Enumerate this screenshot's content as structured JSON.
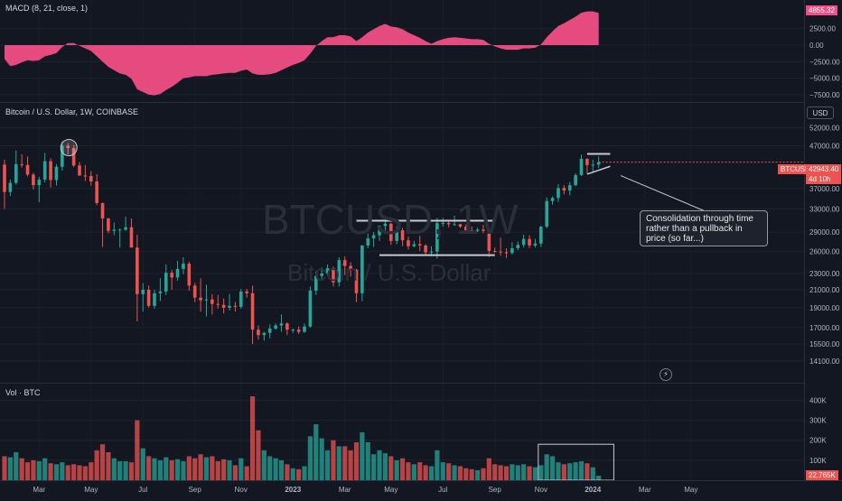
{
  "macd": {
    "title": "MACD (8, 21, close, 1)",
    "color": "#f04e85",
    "y_ticks": [
      4855.32,
      2500,
      0,
      -2500,
      -5000,
      -7500
    ],
    "y_tick_labels": [
      "4855.32",
      "2500.00",
      "0.00",
      "−2500.00",
      "−5000.00",
      "−7500.00"
    ],
    "current_label": "4855.32"
  },
  "price": {
    "title": "Bitcoin / U.S. Dollar, 1W, COINBASE",
    "currency_button": "USD",
    "y_ticks": [
      52000,
      47000,
      42943.4,
      37000,
      33000,
      29000,
      26000,
      23000,
      21000,
      19000,
      17000,
      15500,
      14100
    ],
    "y_tick_labels": [
      "52000.00",
      "47000.00",
      "42943.40",
      "37000.00",
      "33000.00",
      "29000.00",
      "26000.00",
      "23000.00",
      "21000.00",
      "19000.00",
      "17000.00",
      "15500.00",
      "14100.00"
    ],
    "symbol_badge": "BTCUSD",
    "last_price": "42943.40",
    "countdown": "4d 10h",
    "watermark_symbol": "BTCUSD, 1W",
    "watermark_name": "Bitcoin / U.S. Dollar",
    "annotation": "Consolidation through time rather than a pullback in price (so far...)",
    "up_color": "#26a69a",
    "down_color": "#ef5350"
  },
  "volume": {
    "title": "Vol · BTC",
    "y_ticks": [
      400000,
      300000,
      200000,
      100000
    ],
    "y_tick_labels": [
      "400K",
      "300K",
      "200K",
      "100K"
    ],
    "current_label": "22.765K"
  },
  "x_axis": {
    "labels": [
      "Mar",
      "May",
      "Jul",
      "Sep",
      "Nov",
      "2023",
      "Mar",
      "May",
      "Jul",
      "Sep",
      "Nov",
      "2024",
      "Mar",
      "May"
    ]
  },
  "chart_data": {
    "type": "candlestick",
    "title": "Bitcoin / U.S. Dollar, 1W, COINBASE",
    "interval": "1W",
    "start_week": "2022-01-17",
    "grid": true,
    "ylim_price": [
      13000,
      54000
    ],
    "ylim_volume": [
      0,
      470000
    ],
    "ylim_macd": [
      -8200,
      6000
    ],
    "ohlc": [
      [
        42300,
        43500,
        33000,
        36300
      ],
      [
        36300,
        38900,
        35500,
        38200
      ],
      [
        38200,
        45800,
        37800,
        42400
      ],
      [
        42400,
        44800,
        41600,
        42200
      ],
      [
        42200,
        44300,
        39600,
        40000
      ],
      [
        40000,
        40400,
        36800,
        37700
      ],
      [
        37700,
        39500,
        34300,
        38900
      ],
      [
        38900,
        45200,
        38300,
        43100
      ],
      [
        43100,
        43800,
        37200,
        38800
      ],
      [
        38800,
        42400,
        37600,
        41800
      ],
      [
        41800,
        48200,
        40900,
        47000
      ],
      [
        47000,
        47700,
        44800,
        46400
      ],
      [
        46400,
        47200,
        41700,
        42100
      ],
      [
        42100,
        42900,
        39700,
        39800
      ],
      [
        39800,
        42200,
        38600,
        39700
      ],
      [
        39700,
        40800,
        37600,
        38500
      ],
      [
        38500,
        40100,
        33700,
        34100
      ],
      [
        34100,
        34200,
        26700,
        31300
      ],
      [
        31300,
        31400,
        28800,
        29200
      ],
      [
        29200,
        30600,
        28500,
        29400
      ],
      [
        29400,
        29600,
        26600,
        29400
      ],
      [
        29400,
        31600,
        29200,
        29800
      ],
      [
        29800,
        31300,
        26700,
        26600
      ],
      [
        26600,
        28600,
        17600,
        20500
      ],
      [
        20500,
        21800,
        18600,
        21000
      ],
      [
        21000,
        21500,
        19000,
        19200
      ],
      [
        19200,
        21000,
        18900,
        20600
      ],
      [
        20600,
        22400,
        19700,
        20800
      ],
      [
        20800,
        24200,
        20400,
        23100
      ],
      [
        23100,
        23500,
        21000,
        22500
      ],
      [
        22500,
        24700,
        22100,
        23600
      ],
      [
        23600,
        25200,
        22900,
        24300
      ],
      [
        24300,
        24600,
        20900,
        21500
      ],
      [
        21500,
        21800,
        19600,
        20100
      ],
      [
        20100,
        22400,
        18600,
        19800
      ],
      [
        19800,
        21600,
        18100,
        19900
      ],
      [
        19900,
        20500,
        18300,
        19400
      ],
      [
        19400,
        20400,
        18900,
        19300
      ],
      [
        19300,
        20000,
        18400,
        19000
      ],
      [
        19000,
        20500,
        18700,
        19200
      ],
      [
        19200,
        19600,
        18600,
        19100
      ],
      [
        19100,
        21100,
        18900,
        20800
      ],
      [
        20800,
        21100,
        20100,
        20600
      ],
      [
        20600,
        21500,
        15500,
        16800
      ],
      [
        16800,
        17200,
        15900,
        16300
      ],
      [
        16300,
        16600,
        15800,
        16500
      ],
      [
        16500,
        17300,
        16000,
        16900
      ],
      [
        16900,
        17400,
        16800,
        17200
      ],
      [
        17200,
        18300,
        16600,
        17400
      ],
      [
        17400,
        17500,
        16300,
        16800
      ],
      [
        16800,
        16900,
        16500,
        16800
      ],
      [
        16800,
        17100,
        16400,
        16600
      ],
      [
        16600,
        17400,
        16500,
        17100
      ],
      [
        17100,
        21400,
        17000,
        20900
      ],
      [
        20900,
        23300,
        20400,
        22700
      ],
      [
        22700,
        23800,
        22200,
        23000
      ],
      [
        23000,
        24200,
        22700,
        23700
      ],
      [
        23700,
        23900,
        21400,
        21900
      ],
      [
        21900,
        25200,
        21400,
        24800
      ],
      [
        24800,
        25300,
        22800,
        24000
      ],
      [
        24000,
        24500,
        22600,
        23500
      ],
      [
        23500,
        23600,
        19600,
        20600
      ],
      [
        20600,
        27000,
        19700,
        26900
      ],
      [
        26900,
        28800,
        26500,
        28000
      ],
      [
        28000,
        29000,
        26700,
        28500
      ],
      [
        28500,
        30100,
        27600,
        30000
      ],
      [
        30000,
        31000,
        29200,
        30400
      ],
      [
        30400,
        30500,
        27000,
        27600
      ],
      [
        27600,
        29900,
        27100,
        29300
      ],
      [
        29300,
        29700,
        26800,
        27700
      ],
      [
        27700,
        28300,
        26300,
        26800
      ],
      [
        26800,
        27600,
        26600,
        27100
      ],
      [
        27100,
        28400,
        26100,
        26900
      ],
      [
        26900,
        27100,
        25400,
        25900
      ],
      [
        25900,
        26800,
        25300,
        26000
      ],
      [
        26000,
        31400,
        25000,
        30500
      ],
      [
        30500,
        31400,
        29900,
        30500
      ],
      [
        30500,
        31000,
        29800,
        30300
      ],
      [
        30300,
        31800,
        30100,
        30300
      ],
      [
        30300,
        30400,
        29700,
        29900
      ],
      [
        29900,
        30300,
        29200,
        29300
      ],
      [
        29300,
        29900,
        28900,
        29200
      ],
      [
        29200,
        29700,
        29000,
        29400
      ],
      [
        29400,
        30200,
        28800,
        29200
      ],
      [
        29200,
        29600,
        25200,
        26100
      ],
      [
        26100,
        26600,
        25800,
        26000
      ],
      [
        26000,
        28100,
        25400,
        25900
      ],
      [
        25900,
        26500,
        25100,
        25800
      ],
      [
        25800,
        27400,
        25600,
        26500
      ],
      [
        26500,
        27500,
        26200,
        27000
      ],
      [
        27000,
        28600,
        26600,
        27900
      ],
      [
        27900,
        28500,
        26500,
        26900
      ],
      [
        26900,
        27900,
        26600,
        27200
      ],
      [
        27200,
        30000,
        26700,
        29900
      ],
      [
        29900,
        35200,
        29600,
        34500
      ],
      [
        34500,
        35400,
        33800,
        35100
      ],
      [
        35100,
        37900,
        34300,
        37100
      ],
      [
        37100,
        37700,
        35800,
        36600
      ],
      [
        36600,
        38400,
        35600,
        37700
      ],
      [
        37700,
        40300,
        37500,
        39900
      ],
      [
        39900,
        44700,
        39700,
        43700
      ],
      [
        43700,
        43800,
        40200,
        42200
      ],
      [
        42200,
        43500,
        40700,
        42300
      ],
      [
        42300,
        44300,
        41500,
        42900
      ]
    ],
    "volume": [
      120000,
      115000,
      140000,
      110000,
      90000,
      100000,
      95000,
      110000,
      85000,
      80000,
      90000,
      75000,
      80000,
      75000,
      70000,
      90000,
      150000,
      180000,
      140000,
      110000,
      95000,
      95000,
      90000,
      300000,
      160000,
      120000,
      110000,
      100000,
      115000,
      100000,
      105000,
      95000,
      120000,
      110000,
      130000,
      115000,
      120000,
      95000,
      105000,
      100000,
      75000,
      110000,
      70000,
      420000,
      250000,
      150000,
      120000,
      110000,
      100000,
      80000,
      60000,
      55000,
      70000,
      220000,
      280000,
      210000,
      150000,
      200000,
      170000,
      170000,
      150000,
      190000,
      240000,
      190000,
      130000,
      150000,
      135000,
      120000,
      100000,
      110000,
      90000,
      80000,
      90000,
      75000,
      70000,
      150000,
      90000,
      85000,
      75000,
      70000,
      60000,
      55000,
      50000,
      60000,
      110000,
      80000,
      75000,
      70000,
      80000,
      75000,
      80000,
      70000,
      65000,
      75000,
      130000,
      120000,
      90000,
      80000,
      85000,
      90000,
      95000,
      85000,
      65000,
      22765
    ],
    "macd_histogram": [
      -2100,
      -3200,
      -3000,
      -2600,
      -2300,
      -2400,
      -2300,
      -1700,
      -1500,
      -1200,
      -300,
      300,
      300,
      -100,
      -500,
      -900,
      -1700,
      -2500,
      -3300,
      -3800,
      -4300,
      -4500,
      -5100,
      -6700,
      -7100,
      -7500,
      -7600,
      -7400,
      -6800,
      -6300,
      -5700,
      -5000,
      -4900,
      -4700,
      -4700,
      -4700,
      -4500,
      -4400,
      -4300,
      -4200,
      -4200,
      -3900,
      -3700,
      -4300,
      -4500,
      -4500,
      -4400,
      -4200,
      -3800,
      -3400,
      -3000,
      -2700,
      -2300,
      -1300,
      -100,
      600,
      1200,
      1200,
      1500,
      1500,
      1300,
      600,
      1200,
      1900,
      2400,
      2900,
      3200,
      2800,
      2700,
      2400,
      1900,
      1500,
      1100,
      600,
      200,
      600,
      900,
      1100,
      1200,
      1100,
      1000,
      900,
      900,
      800,
      200,
      -200,
      -500,
      -700,
      -700,
      -700,
      -500,
      -500,
      -400,
      100,
      1200,
      2100,
      2900,
      3300,
      3800,
      4300,
      4900,
      5100,
      5100,
      4855
    ],
    "annotations": [
      {
        "type": "horizontal-segment",
        "price": 30900,
        "from_week": 61,
        "to_week": 85
      },
      {
        "type": "horizontal-segment",
        "price": 25500,
        "from_week": 65,
        "to_week": 85
      },
      {
        "type": "horizontal-segment",
        "price": 44900,
        "from_week": 101,
        "to_week": 105
      },
      {
        "type": "trendline",
        "from": [
          101,
          40100
        ],
        "to": [
          105,
          41900
        ]
      },
      {
        "type": "circle",
        "week": 11,
        "price": 47000
      },
      {
        "type": "rectangle",
        "from_week": 93,
        "to_week": 105,
        "price_volume_top": 180000,
        "price_volume_bottom": 0
      }
    ]
  }
}
